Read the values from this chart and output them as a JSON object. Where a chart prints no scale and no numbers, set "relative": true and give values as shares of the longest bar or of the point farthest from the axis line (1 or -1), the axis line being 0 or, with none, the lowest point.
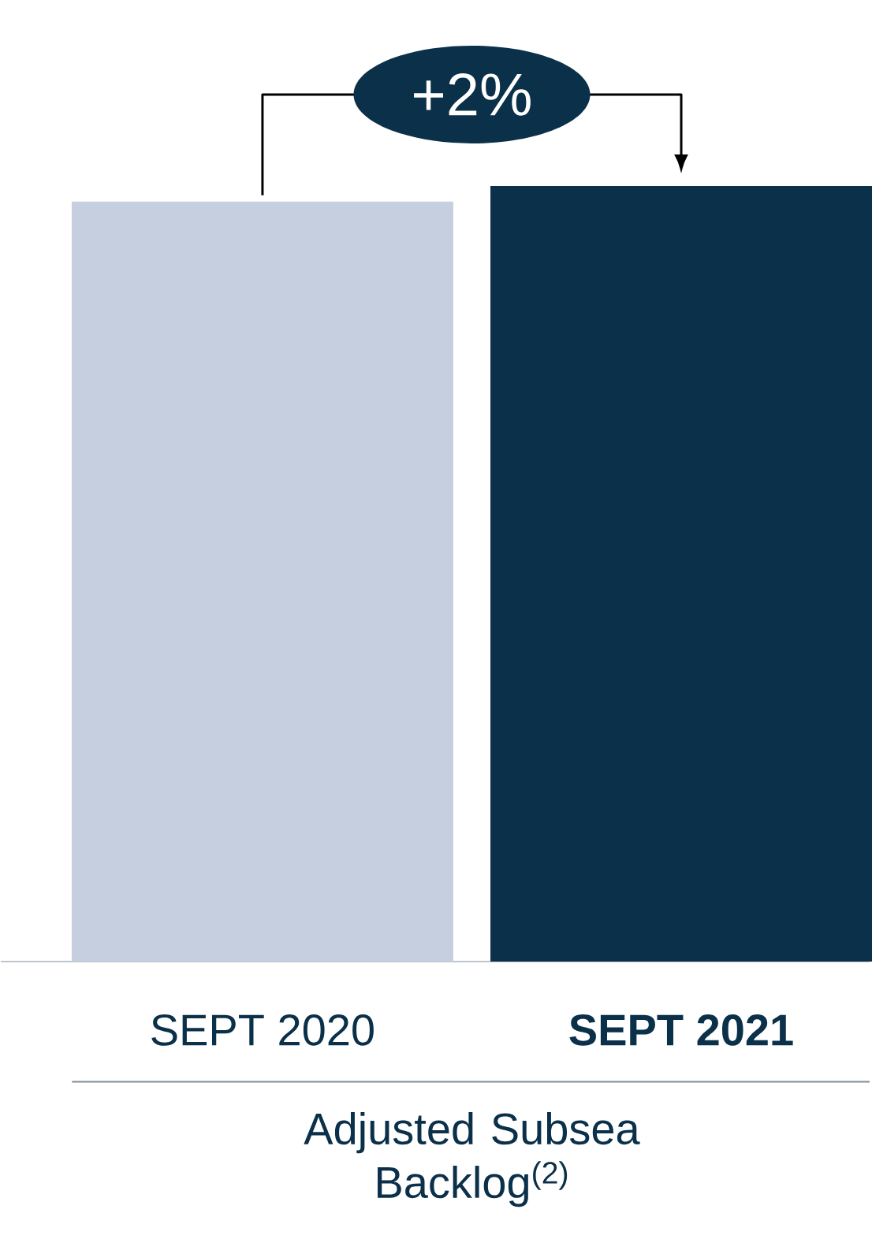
{
  "chart_data": {
    "type": "bar",
    "relative": true,
    "categories": [
      "SEPT 2020",
      "**SEPT 2021**"
    ],
    "values": [
      0.98,
      1
    ],
    "colors": [
      "#c5cfe0",
      "#0b3049"
    ],
    "xlabel": "Adjusted Subsea Backlog$^{(2)}$",
    "annotations": [
      "+2%"
    ]
  }
}
